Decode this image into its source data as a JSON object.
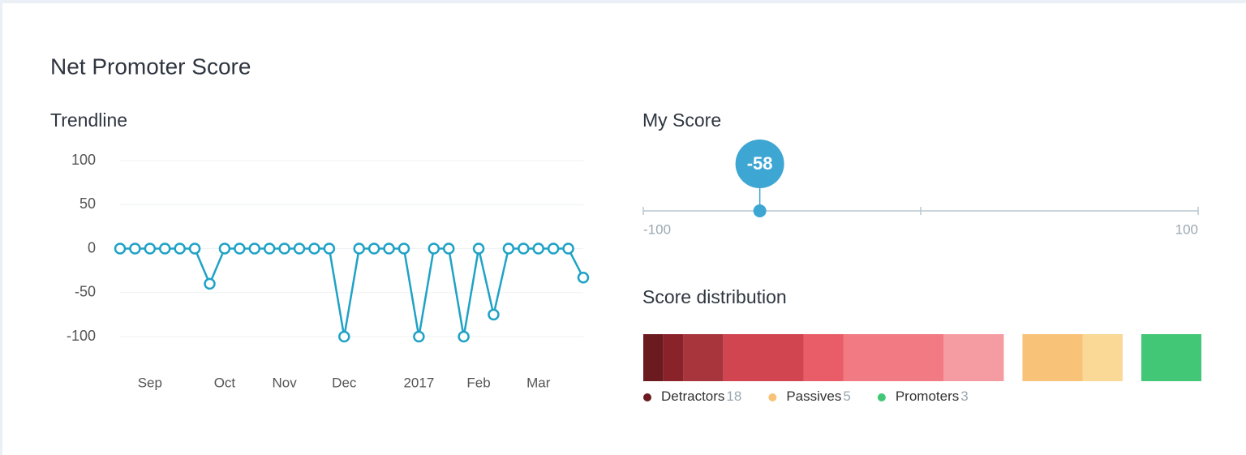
{
  "title": "Net Promoter Score",
  "chart_data": [
    {
      "type": "line",
      "title": "Trendline",
      "categories": [
        null,
        null,
        "Sep",
        null,
        null,
        null,
        null,
        "Oct",
        null,
        null,
        null,
        "Nov",
        null,
        null,
        null,
        "Dec",
        null,
        null,
        null,
        null,
        "2017",
        null,
        null,
        null,
        "Feb",
        null,
        null,
        null,
        "Mar",
        null,
        null,
        null
      ],
      "values": [
        0,
        0,
        0,
        0,
        0,
        0,
        -40,
        0,
        0,
        0,
        0,
        0,
        0,
        0,
        0,
        -100,
        0,
        0,
        0,
        0,
        -100,
        0,
        0,
        -100,
        0,
        -75,
        0,
        0,
        0,
        0,
        0,
        -33
      ],
      "color": "#1fa2c6",
      "ylim": [
        -100,
        100
      ],
      "yticks": [
        -100,
        -50,
        0,
        50,
        100
      ],
      "grid": true
    },
    {
      "type": "gauge",
      "title": "My Score",
      "value": -58,
      "xlim": [
        -100,
        100
      ],
      "xticks": [
        -100,
        0,
        100
      ],
      "color": "#3ea6d2"
    },
    {
      "type": "distribution",
      "title": "Score distribution",
      "groups": [
        {
          "name": "Detractors",
          "total": 18,
          "color": "#6b1a1f",
          "values": [
            1,
            1,
            2,
            4,
            2,
            5,
            3
          ],
          "colors": [
            "#6b1a1f",
            "#8a2229",
            "#a8343c",
            "#d14550",
            "#e85d68",
            "#f27a83",
            "#f59ca3"
          ]
        },
        {
          "name": "Passives",
          "total": 5,
          "color": "#f8c378",
          "values": [
            3,
            2
          ],
          "colors": [
            "#f8c378",
            "#fad896"
          ]
        },
        {
          "name": "Promoters",
          "total": 3,
          "color": "#42c776",
          "values": [
            3
          ],
          "colors": [
            "#42c776"
          ]
        }
      ]
    }
  ]
}
